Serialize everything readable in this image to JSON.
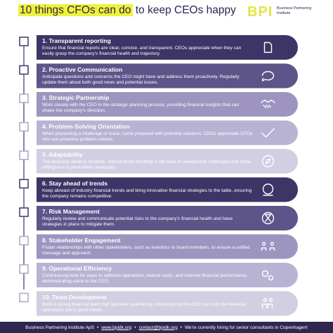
{
  "header": {
    "title_highlight": "10 things CFOs can do",
    "title_rest": "to keep CEOs happy",
    "logo": "BPI",
    "logo_text": "Business Partnering Institute"
  },
  "items": [
    {
      "title": "1. Transparent reporting",
      "text": "Ensure that financial reports are clear, concise, and transparent. CEOs appreciate when they can easily grasp the company's financial health and trajectory."
    },
    {
      "title": "2. Proactive Communication",
      "text": "Anticipate questions and concerns the CEO might have and address them proactively. Regularly update them about both good news and potential issues."
    },
    {
      "title": "3. Strategic Partnership",
      "text": "Work closely with the CEO in the strategic planning process, providing financial insights that can shape the company's direction."
    },
    {
      "title": "4. Problem-Solving Orientation",
      "text": "When presenting a challenge or issue, come prepared with potential solutions. CEOs appreciate CFOs who are proactive problem solvers."
    },
    {
      "title": "5. Adaptability",
      "text": "The business world is dynamic. Demonstrate flexibility in the face of unexpected challenges and show willingness to pivot when necessary."
    },
    {
      "title": "6. Stay ahead of trends",
      "text": "Keep abreast of industry financial trends and bring innovative financial strategies to the table, ensuring the company remains competitive."
    },
    {
      "title": "7. Risk Management",
      "text": "Regularly review and communicate potential risks to the company's financial health and have strategies in place to mitigate them."
    },
    {
      "title": "8. Stakeholder Engagement",
      "text": "Foster relationships with other stakeholders, such as investors or board members, to ensure a unified message and approach."
    },
    {
      "title": "9. Operational Efficiency",
      "text": "Continuously look for ways to optimize operations, reduce costs, and improve financial performance, demonstrating value to the CEO."
    },
    {
      "title": "10. Team Development",
      "text": "Build a strong financial team that operates seamlessly, ensuring that the CEO can trust the financial operations are in good hands."
    }
  ],
  "footer": {
    "company": "Business Partnering Institute ApS",
    "website": "www.bpidk.org",
    "email": "contact@bpidk.org",
    "hiring": "We're currently hiring for senior consultants in Copenhagen!"
  }
}
